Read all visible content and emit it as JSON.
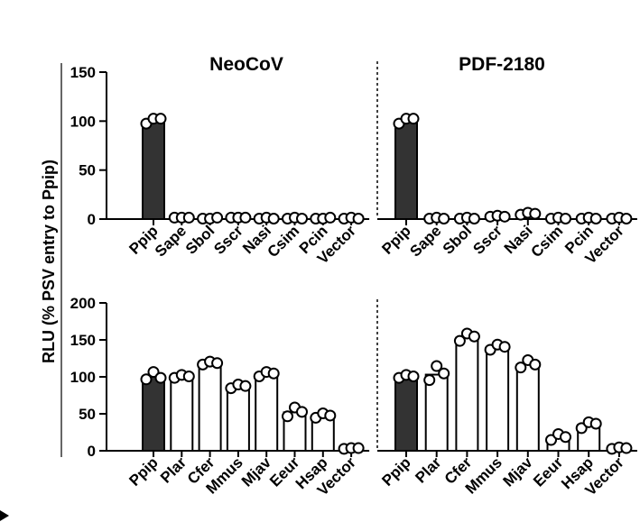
{
  "figure": {
    "ylabel": "RLU (% PSV entry to Ppip)"
  },
  "chart_data": [
    {
      "id": "top-left",
      "type": "bar",
      "title": "NeoCoV",
      "categories": [
        "Ppip",
        "Sape",
        "Sbol",
        "Sscr",
        "Nasi",
        "Csim",
        "Pcin",
        "Vector"
      ],
      "values": [
        100,
        1,
        0.5,
        1,
        0.5,
        0.5,
        0.5,
        0.5
      ],
      "points": [
        [
          97,
          102,
          102
        ],
        [
          1,
          1,
          1
        ],
        [
          0,
          0,
          1
        ],
        [
          1,
          1,
          1
        ],
        [
          0,
          1,
          0
        ],
        [
          0,
          1,
          0
        ],
        [
          0,
          0,
          1
        ],
        [
          0,
          1,
          0
        ]
      ],
      "yticks": [
        0,
        50,
        100,
        150
      ],
      "ylim": [
        0,
        150
      ],
      "filled": [
        "Ppip"
      ]
    },
    {
      "id": "top-right",
      "type": "bar",
      "title": "PDF-2180",
      "categories": [
        "Ppip",
        "Sape",
        "Sbol",
        "Sscr",
        "Nasi",
        "Csim",
        "Pcin",
        "Vector"
      ],
      "values": [
        100,
        0.5,
        0.5,
        2,
        5,
        0.5,
        0.5,
        0.5
      ],
      "points": [
        [
          97,
          102,
          102
        ],
        [
          0,
          1,
          0
        ],
        [
          0,
          1,
          0
        ],
        [
          2,
          3,
          2
        ],
        [
          4,
          6,
          5
        ],
        [
          0,
          1,
          0
        ],
        [
          0,
          1,
          0
        ],
        [
          0,
          1,
          0
        ]
      ],
      "yticks": [
        0,
        50,
        100,
        150
      ],
      "ylim": [
        0,
        150
      ],
      "filled": [
        "Ppip"
      ]
    },
    {
      "id": "bottom-left",
      "type": "bar",
      "categories": [
        "Ppip",
        "Plar",
        "Cfer",
        "Mmus",
        "Mjav",
        "Eeur",
        "Hsap",
        "Vector"
      ],
      "values": [
        100,
        100,
        118,
        87,
        104,
        52,
        47,
        3
      ],
      "points": [
        [
          96,
          106,
          98
        ],
        [
          98,
          102,
          100
        ],
        [
          116,
          120,
          118
        ],
        [
          84,
          89,
          87
        ],
        [
          100,
          106,
          104
        ],
        [
          46,
          58,
          52
        ],
        [
          44,
          50,
          47
        ],
        [
          2,
          3,
          3
        ]
      ],
      "yticks": [
        0,
        50,
        100,
        150,
        200
      ],
      "ylim": [
        0,
        200
      ],
      "filled": [
        "Ppip"
      ]
    },
    {
      "id": "bottom-right",
      "type": "bar",
      "categories": [
        "Ppip",
        "Plar",
        "Cfer",
        "Mmus",
        "Mjav",
        "Eeur",
        "Hsap",
        "Vector"
      ],
      "values": [
        100,
        103,
        153,
        140,
        117,
        18,
        35,
        3
      ],
      "points": [
        [
          98,
          102,
          100
        ],
        [
          95,
          114,
          104
        ],
        [
          148,
          158,
          154
        ],
        [
          136,
          143,
          140
        ],
        [
          112,
          122,
          116
        ],
        [
          14,
          22,
          18
        ],
        [
          30,
          38,
          36
        ],
        [
          2,
          4,
          3
        ]
      ],
      "yticks": [
        0,
        50,
        100,
        150,
        200
      ],
      "ylim": [
        0,
        200
      ],
      "filled": [
        "Ppip"
      ]
    }
  ]
}
